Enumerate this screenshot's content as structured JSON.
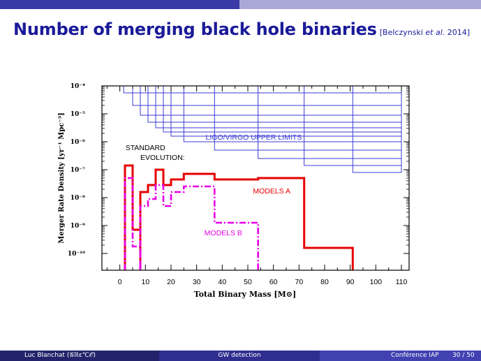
{
  "slide": {
    "title": "Number of merging black hole binaries",
    "cite_prefix": "[Belczynski ",
    "cite_etal": "et al.",
    "cite_suffix": " 2014]"
  },
  "footer": {
    "author": "Luc Blanchat (𝒢ℝε℃𝒪)",
    "talk": "GW detection",
    "venue": "Conférence IAP",
    "page": "30 / 50"
  },
  "colors": {
    "header_dark": "#3a3aa6",
    "header_light": "#a9a9d8",
    "title": "#1a1a99",
    "limits": "#3b3bd6",
    "models_a": "#e60000",
    "models_b": "#e600e6"
  },
  "chart_data": {
    "type": "line",
    "title": "",
    "xlabel": "Total Binary Mass [M⊙]",
    "ylabel": "Merger Rate Density [yr⁻¹ Mpc⁻³]",
    "xlim": [
      -7,
      113
    ],
    "ylim_log10": [
      -10.6,
      -4
    ],
    "y_scale": "log",
    "x_ticks": [
      0,
      10,
      20,
      30,
      40,
      50,
      60,
      70,
      80,
      90,
      100,
      110
    ],
    "y_ticks": [
      {
        "exp": -4,
        "label": "10⁻⁴"
      },
      {
        "exp": -5,
        "label": "10⁻⁵"
      },
      {
        "exp": -6,
        "label": "10⁻⁶"
      },
      {
        "exp": -7,
        "label": "10⁻⁷"
      },
      {
        "exp": -8,
        "label": "10⁻⁸"
      },
      {
        "exp": -9,
        "label": "10⁻⁹"
      },
      {
        "exp": -10,
        "label": "10⁻¹⁰"
      }
    ],
    "annotations": {
      "limits": "LIGO/VIRGO UPPER LIMITS",
      "standard_1": "STANDARD",
      "standard_2": "EVOLUTION:",
      "models_a": "MODELS A",
      "models_b": "MODELS B"
    },
    "upper_limits": [
      {
        "x_start": 1.5,
        "log_y": -4.25
      },
      {
        "x_start": 5,
        "log_y": -4.7
      },
      {
        "x_start": 8,
        "log_y": -5.05
      },
      {
        "x_start": 11,
        "log_y": -5.3
      },
      {
        "x_start": 14,
        "log_y": -5.5
      },
      {
        "x_start": 17,
        "log_y": -5.65
      },
      {
        "x_start": 20,
        "log_y": -5.8
      },
      {
        "x_start": 25,
        "log_y": -6.0
      },
      {
        "x_start": 37,
        "log_y": -6.3
      },
      {
        "x_start": 54,
        "log_y": -6.6
      },
      {
        "x_start": 72,
        "log_y": -6.85
      },
      {
        "x_start": 91,
        "log_y": -7.1
      }
    ],
    "upper_limit_x_end": 110,
    "series": [
      {
        "step_points": [
          [
            2,
            -10.6
          ],
          [
            2,
            -6.85
          ],
          [
            5,
            -6.85
          ],
          [
            5,
            -9.15
          ],
          [
            8,
            -9.15
          ],
          [
            8,
            -10.6
          ]
        ],
        "step_points_2": [
          [
            8,
            -10.6
          ],
          [
            8,
            -7.8
          ],
          [
            11,
            -7.8
          ],
          [
            11,
            -7.55
          ],
          [
            14,
            -7.55
          ],
          [
            14,
            -7.0
          ],
          [
            17,
            -7.0
          ],
          [
            17,
            -7.55
          ],
          [
            20,
            -7.55
          ],
          [
            20,
            -7.35
          ],
          [
            25,
            -7.35
          ],
          [
            25,
            -7.15
          ],
          [
            37,
            -7.15
          ],
          [
            37,
            -7.35
          ],
          [
            54,
            -7.35
          ],
          [
            54,
            -7.3
          ],
          [
            72,
            -7.3
          ],
          [
            72,
            -9.8
          ],
          [
            91,
            -9.8
          ],
          [
            91,
            -10.6
          ]
        ]
      },
      {
        "step_points": [
          [
            2,
            -10.6
          ],
          [
            2,
            -7.3
          ],
          [
            5,
            -7.3
          ],
          [
            5,
            -9.75
          ],
          [
            8,
            -9.75
          ],
          [
            8,
            -10.6
          ]
        ],
        "step_points_2": [
          [
            8,
            -10.6
          ],
          [
            8,
            -8.3
          ],
          [
            11,
            -8.3
          ],
          [
            11,
            -8.05
          ],
          [
            14,
            -8.05
          ],
          [
            14,
            -7.55
          ],
          [
            17,
            -7.55
          ],
          [
            17,
            -8.3
          ],
          [
            20,
            -8.3
          ],
          [
            20,
            -7.8
          ],
          [
            25,
            -7.8
          ],
          [
            25,
            -7.6
          ],
          [
            37,
            -7.6
          ],
          [
            37,
            -8.9
          ],
          [
            54,
            -8.9
          ],
          [
            54,
            -10.6
          ]
        ]
      }
    ]
  }
}
